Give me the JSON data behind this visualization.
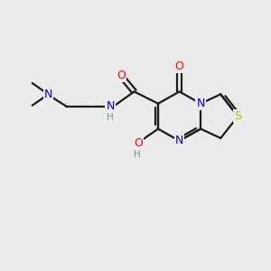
{
  "bg_color": "#ebebeb",
  "bond_color": "#1a1a1a",
  "atom_colors": {
    "O": "#ff0000",
    "N": "#0000cc",
    "S": "#bbbb00",
    "H_label": "#6a9a8a",
    "C": "#1a1a1a"
  },
  "figsize": [
    3.0,
    3.0
  ],
  "dpi": 100
}
